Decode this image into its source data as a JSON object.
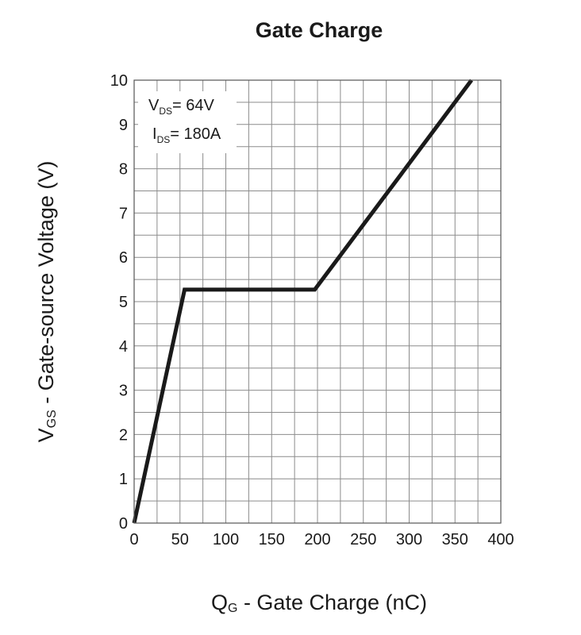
{
  "chart_data": {
    "type": "line",
    "title": "Gate Charge",
    "xlabel": {
      "main": "Q",
      "sub": "G",
      "rest": " - Gate Charge (nC)"
    },
    "ylabel": {
      "main": "V",
      "sub": "GS",
      "rest": " - Gate-source Voltage (V)"
    },
    "xlim": [
      0,
      400
    ],
    "ylim": [
      0,
      10
    ],
    "x_ticks": [
      0,
      50,
      100,
      150,
      200,
      250,
      300,
      350,
      400
    ],
    "y_ticks": [
      0,
      1,
      2,
      3,
      4,
      5,
      6,
      7,
      8,
      9,
      10
    ],
    "x_grid_step": 25,
    "y_grid_step": 0.5,
    "grid": true,
    "series": [
      {
        "x": [
          0,
          55,
          197,
          368
        ],
        "y": [
          0,
          5.27,
          5.27,
          10
        ]
      }
    ],
    "annotations": [
      {
        "main": "V",
        "sub": "DS",
        "rest": "= 64V"
      },
      {
        "main": "I",
        "sub": "DS",
        "rest": "= 180A"
      }
    ],
    "colors": {
      "line": "#1a1a1a",
      "grid": "#8c8c8c",
      "frame": "#555555"
    }
  }
}
